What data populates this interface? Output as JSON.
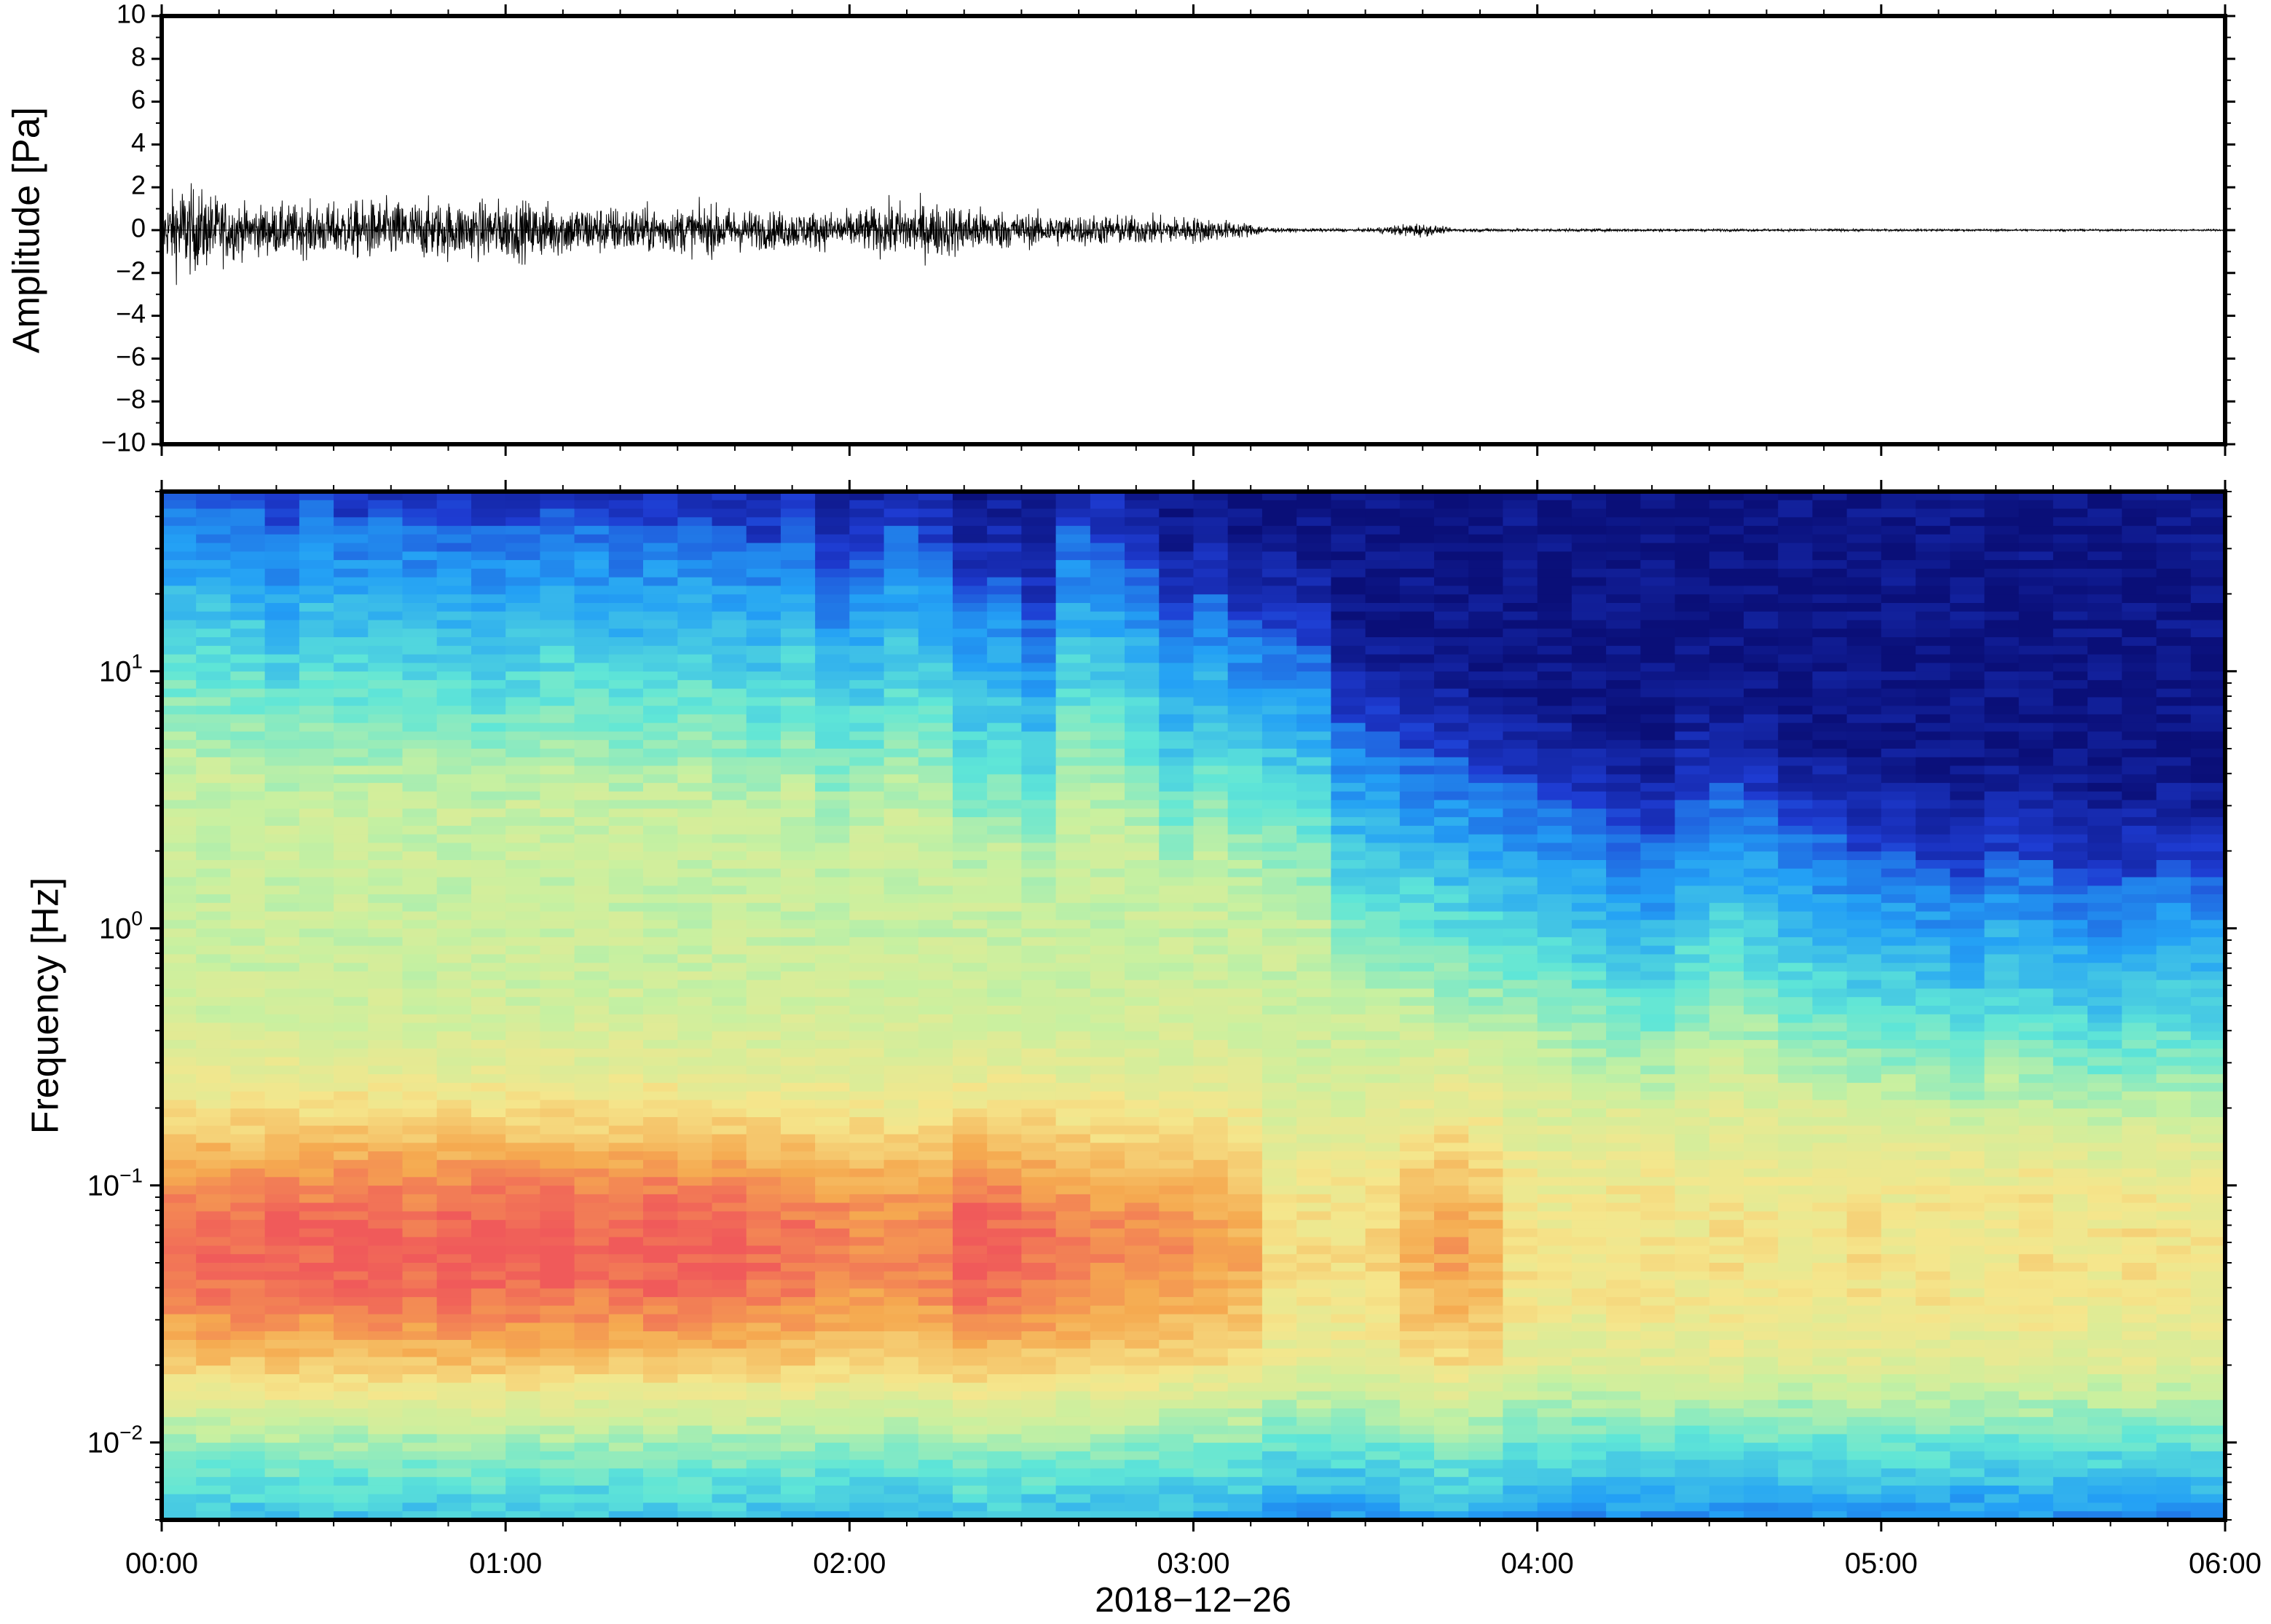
{
  "chart_data": [
    {
      "type": "line",
      "ylabel": "Amplitude [Pa]",
      "ylim": [
        -10,
        10
      ],
      "yticks": [
        "10",
        "8",
        "6",
        "4",
        "2",
        "0",
        "−2",
        "−4",
        "−6",
        "−8",
        "−10"
      ],
      "yticks_values": [
        10,
        8,
        6,
        4,
        2,
        0,
        -2,
        -4,
        -6,
        -8,
        -10
      ],
      "xlim_hours": [
        0,
        6
      ],
      "grid": false,
      "line_color": "#000000",
      "envelope": {
        "x_hours": [
          0.0,
          0.05,
          0.25,
          0.5,
          0.6,
          0.9,
          1.0,
          1.25,
          1.5,
          1.6,
          1.75,
          2.0,
          2.15,
          2.3,
          2.5,
          2.75,
          3.0,
          3.15,
          3.25,
          3.5,
          3.65,
          3.75,
          4.0,
          5.0,
          6.0
        ],
        "amplitude_pa": [
          1.2,
          2.5,
          1.3,
          1.4,
          1.6,
          1.5,
          1.6,
          1.3,
          1.2,
          1.3,
          1.0,
          1.0,
          1.5,
          1.4,
          0.9,
          0.8,
          0.7,
          0.4,
          0.1,
          0.08,
          0.4,
          0.1,
          0.08,
          0.06,
          0.05
        ]
      }
    },
    {
      "type": "heatmap",
      "ylabel": "Frequency [Hz]",
      "y_scale": "log",
      "ylim_hz": [
        0.005,
        50
      ],
      "ytick_base": "10",
      "yticks_exponents": [
        "−2",
        "−1",
        "0",
        "1"
      ],
      "yticks_values": [
        0.01,
        0.1,
        1,
        10
      ],
      "colormap": [
        "#0a0f78",
        "#1e3cd2",
        "#23a0f5",
        "#5fe6d7",
        "#c8f0a0",
        "#f5e68c",
        "#f5aa50",
        "#f05a5a"
      ],
      "columns_per_hour": 10,
      "upper_extent_log10_hz": [
        1.7,
        1.68,
        1.65,
        1.55,
        1.65,
        1.6,
        1.62,
        1.6,
        1.58,
        1.55,
        1.58,
        1.62,
        1.6,
        1.55,
        1.58,
        1.6,
        1.55,
        1.5,
        1.6,
        1.4,
        1.45,
        1.55,
        1.5,
        1.3,
        1.35,
        1.2,
        1.55,
        1.5,
        1.4,
        1.2,
        1.3,
        1.2,
        1.15,
        1.1,
        0.8,
        0.75,
        0.7,
        0.65,
        0.6,
        0.55,
        0.5,
        0.45,
        0.4,
        0.35,
        0.5,
        0.55,
        0.5,
        0.4,
        0.35,
        0.3,
        0.3,
        0.25,
        0.2,
        0.3,
        0.25,
        0.2,
        0.15,
        0.2,
        0.25,
        0.2
      ],
      "hot_band_strength": [
        0.9,
        0.95,
        0.95,
        1.0,
        0.95,
        1.0,
        1.0,
        0.95,
        1.0,
        1.0,
        1.0,
        1.0,
        0.95,
        0.95,
        1.0,
        0.95,
        0.95,
        0.9,
        0.9,
        0.85,
        0.8,
        0.8,
        0.85,
        1.0,
        0.95,
        0.9,
        0.85,
        0.8,
        0.8,
        0.75,
        0.7,
        0.65,
        0.35,
        0.35,
        0.35,
        0.4,
        0.6,
        0.7,
        0.6,
        0.35,
        0.3,
        0.3,
        0.35,
        0.35,
        0.3,
        0.35,
        0.3,
        0.3,
        0.3,
        0.35,
        0.3,
        0.35,
        0.3,
        0.3,
        0.35,
        0.3,
        0.3,
        0.35,
        0.3,
        0.3
      ]
    }
  ],
  "shared_x": {
    "xlabel": "2018−12−26",
    "xticks": [
      "00:00",
      "01:00",
      "02:00",
      "03:00",
      "04:00",
      "05:00",
      "06:00"
    ],
    "xticks_hours": [
      0,
      1,
      2,
      3,
      4,
      5,
      6
    ],
    "minor_ticks_per_hour": 6
  }
}
